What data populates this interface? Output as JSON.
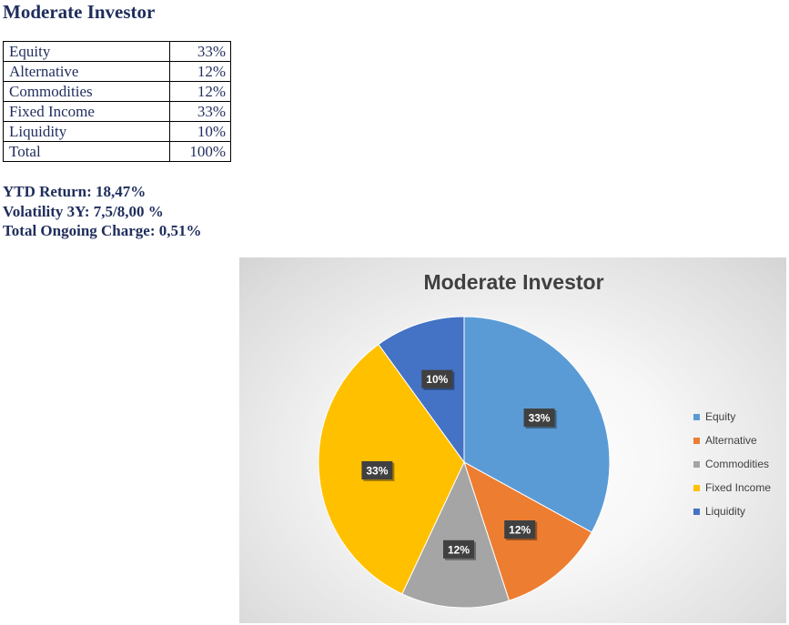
{
  "page": {
    "title": "Moderate Investor"
  },
  "allocation": {
    "rows": [
      {
        "label": "Equity",
        "value": "33%"
      },
      {
        "label": "Alternative",
        "value": "12%"
      },
      {
        "label": "Commodities",
        "value": "12%"
      },
      {
        "label": "Fixed Income",
        "value": "33%"
      },
      {
        "label": "Liquidity",
        "value": "10%"
      },
      {
        "label": "Total",
        "value": "100%"
      }
    ]
  },
  "stats": {
    "ytd": "YTD Return: 18,47%",
    "volatility": "Volatility 3Y: 7,5/8,00 %",
    "charge": "Total Ongoing Charge: 0,51%"
  },
  "chart_data": {
    "type": "pie",
    "title": "Moderate Investor",
    "categories": [
      "Equity",
      "Alternative",
      "Commodities",
      "Fixed Income",
      "Liquidity"
    ],
    "values": [
      33,
      12,
      12,
      33,
      10
    ],
    "data_labels": [
      "33%",
      "12%",
      "12%",
      "33%",
      "10%"
    ],
    "colors": [
      "#5b9bd5",
      "#ed7d31",
      "#a5a5a5",
      "#ffc000",
      "#4472c4"
    ],
    "label_bg": "#404040",
    "legend_position": "right",
    "start": "top, clockwise"
  }
}
